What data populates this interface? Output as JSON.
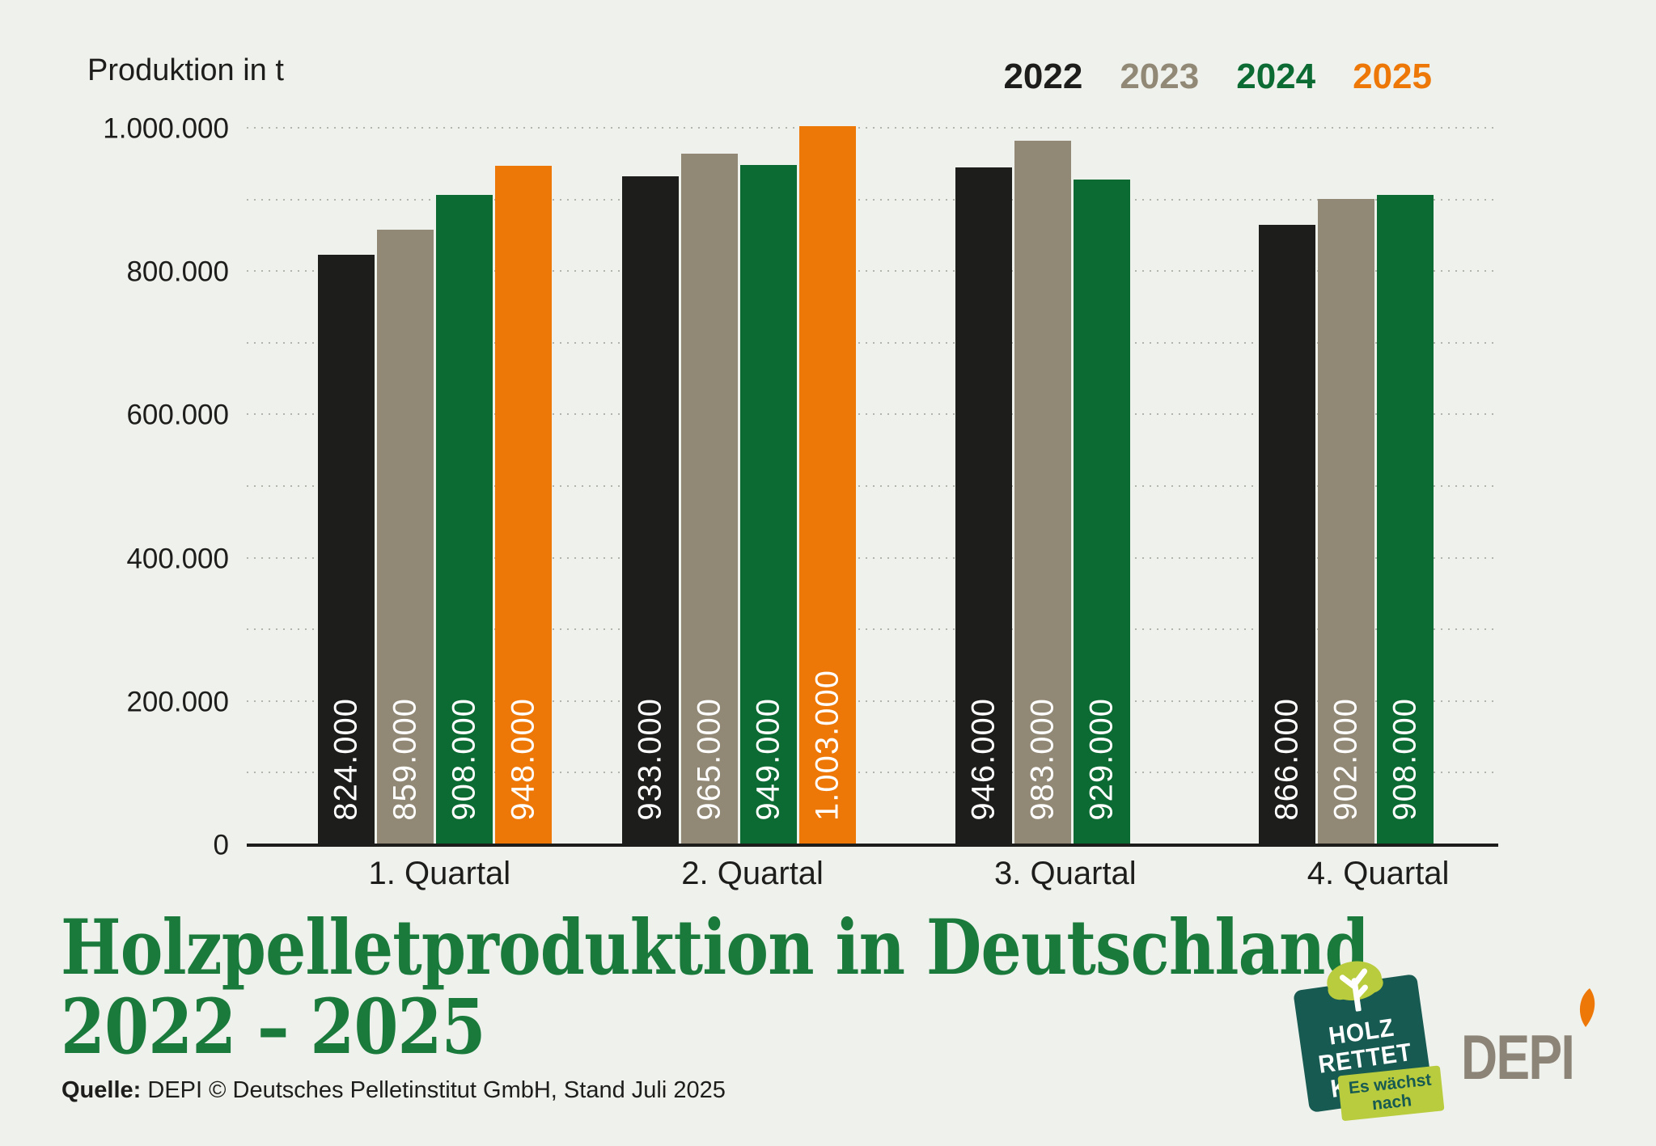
{
  "page": {
    "background": "#eff1ec"
  },
  "axis_title": "Produktion in t",
  "chart_data": {
    "type": "bar",
    "title": "Holzpelletproduktion in Deutschland 2022 – 2025",
    "ylabel": "Produktion in t",
    "xlabel": "",
    "ylim": [
      0,
      1060000
    ],
    "grid": "dotted-horizontal-every-100000",
    "legend_position": "top-right",
    "categories": [
      "1. Quartal",
      "2. Quartal",
      "3. Quartal",
      "4. Quartal"
    ],
    "y_ticks": [
      {
        "value": 0,
        "label": "0"
      },
      {
        "value": 200000,
        "label": "200.000"
      },
      {
        "value": 400000,
        "label": "400.000"
      },
      {
        "value": 600000,
        "label": "600.000"
      },
      {
        "value": 800000,
        "label": "800.000"
      },
      {
        "value": 1000000,
        "label": "1.000.000"
      }
    ],
    "series": [
      {
        "name": "2022",
        "color": "#1d1d1b",
        "values": [
          824000,
          933000,
          946000,
          866000
        ],
        "value_labels": [
          "824.000",
          "933.000",
          "946.000",
          "866.000"
        ]
      },
      {
        "name": "2023",
        "color": "#918875",
        "values": [
          859000,
          965000,
          983000,
          902000
        ],
        "value_labels": [
          "859.000",
          "965.000",
          "983.000",
          "902.000"
        ]
      },
      {
        "name": "2024",
        "color": "#0b6b33",
        "values": [
          908000,
          949000,
          929000,
          908000
        ],
        "value_labels": [
          "908.000",
          "949.000",
          "929.000",
          "908.000"
        ]
      },
      {
        "name": "2025",
        "color": "#ee7807",
        "values": [
          948000,
          1003000,
          null,
          null
        ],
        "value_labels": [
          "948.000",
          "1.003.000",
          null,
          null
        ]
      }
    ]
  },
  "title": {
    "line1": "Holzpelletproduktion in Deutschland",
    "line2": "2022 – 2025",
    "color": "#1a7a3c"
  },
  "source": {
    "prefix": "Quelle:",
    "text": " DEPI  © Deutsches Pelletinstitut GmbH, Stand Juli 2025"
  },
  "logos": {
    "holz_rettet_klima": {
      "lines": [
        "HOLZ",
        "RETTET",
        "KLIMA"
      ],
      "banner_line1": "Es wächst",
      "banner_line2": "nach",
      "bg_color": "#175a52",
      "accent_color": "#b9cc3d"
    },
    "depi": {
      "text": "DEPI",
      "text_color": "#8d8478",
      "flame_color": "#ee7807"
    }
  }
}
